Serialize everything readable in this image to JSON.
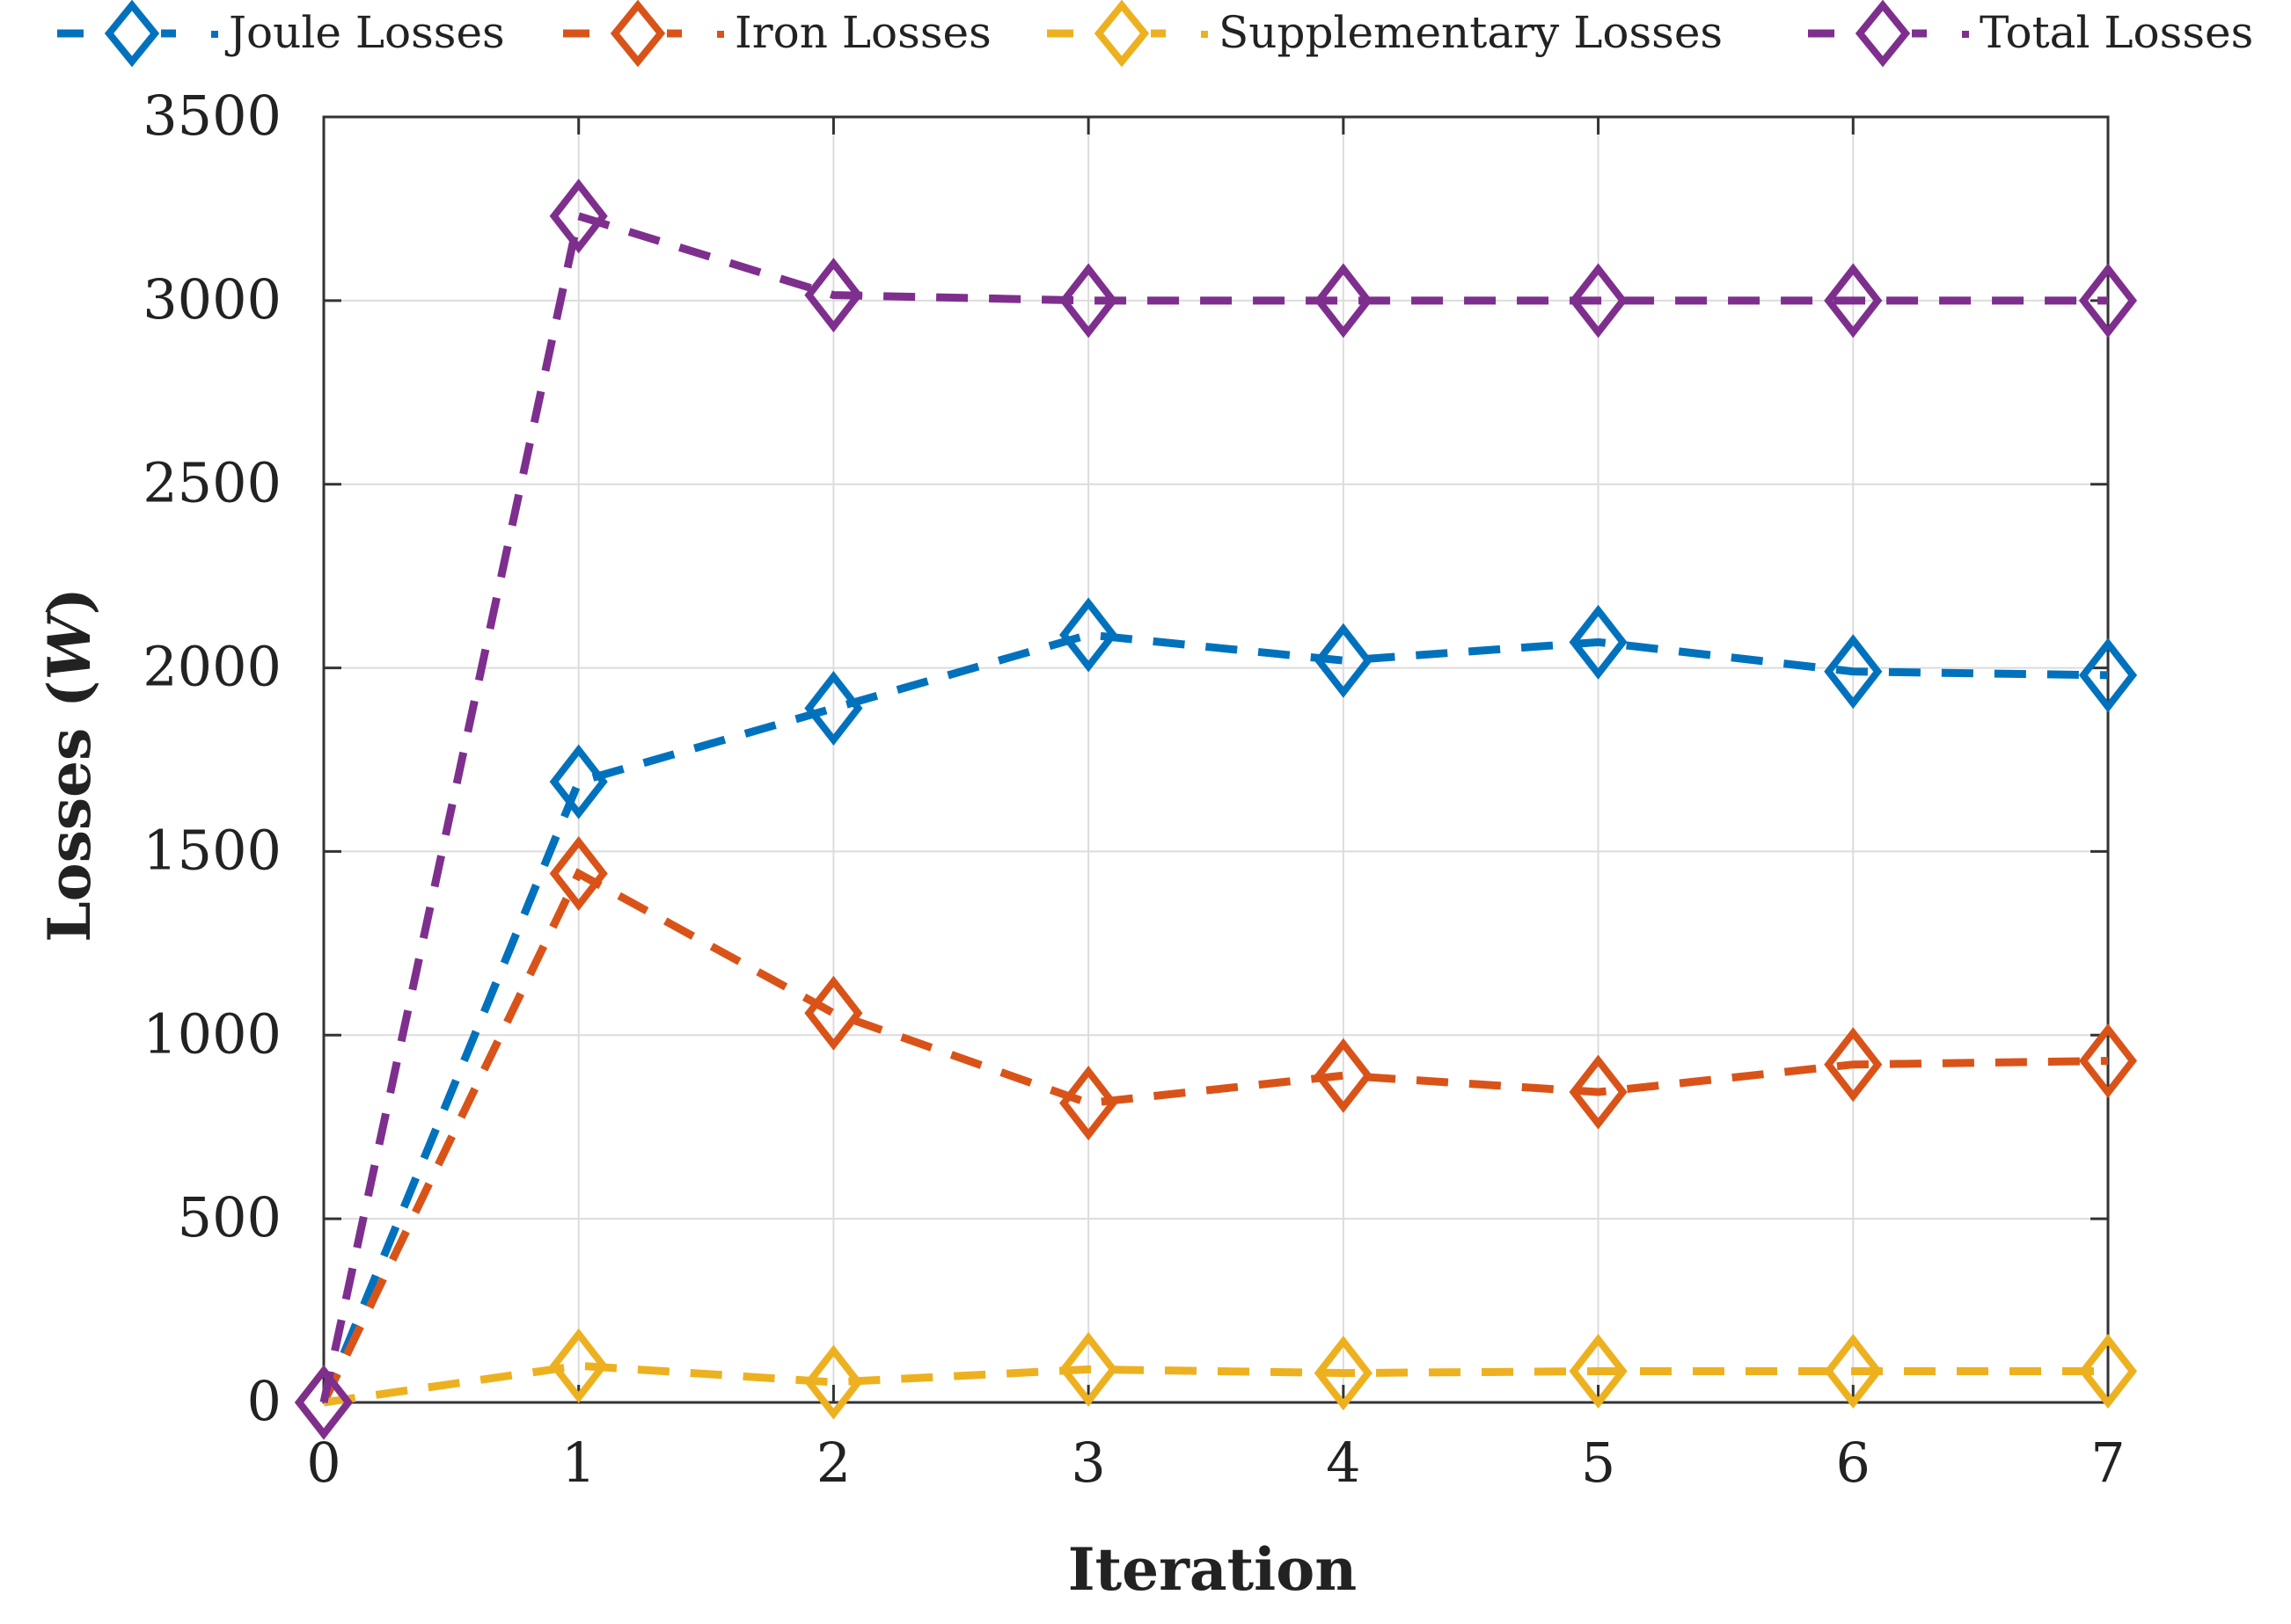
{
  "chart_data": {
    "type": "line",
    "title": "",
    "xlabel": "Iteration",
    "ylabel_main": "Losses (",
    "ylabel_italic": "W",
    "ylabel_close": ")",
    "xlim": [
      0,
      7
    ],
    "ylim": [
      0,
      3500
    ],
    "x": [
      0,
      1,
      2,
      3,
      4,
      5,
      6,
      7
    ],
    "x_ticks": [
      "0",
      "1",
      "2",
      "3",
      "4",
      "5",
      "6",
      "7"
    ],
    "y_tick_values": [
      0,
      500,
      1000,
      1500,
      2000,
      2500,
      3000,
      3500
    ],
    "y_ticks": [
      "0",
      "500",
      "1000",
      "1500",
      "2000",
      "2500",
      "3000",
      "3500"
    ],
    "grid": true,
    "legend_position": "top",
    "series": [
      {
        "name": "Joule Losses",
        "color": "#0072BD",
        "marker": "diamond",
        "line_style": "dashed",
        "values": [
          0,
          1690,
          1890,
          2090,
          2020,
          2070,
          1990,
          1980
        ]
      },
      {
        "name": "Iron Losses",
        "color": "#D95319",
        "marker": "diamond",
        "line_style": "dashed",
        "values": [
          0,
          1440,
          1060,
          815,
          890,
          845,
          920,
          930
        ]
      },
      {
        "name": "Supplementary Losses",
        "color": "#EDB120",
        "marker": "diamond",
        "line_style": "dashed",
        "values": [
          0,
          100,
          55,
          90,
          80,
          85,
          85,
          85
        ]
      },
      {
        "name": "Total Losses",
        "color": "#7E2F8E",
        "marker": "diamond",
        "line_style": "dashed",
        "values": [
          0,
          3230,
          3015,
          3000,
          3000,
          3000,
          3000,
          3000
        ]
      }
    ]
  }
}
